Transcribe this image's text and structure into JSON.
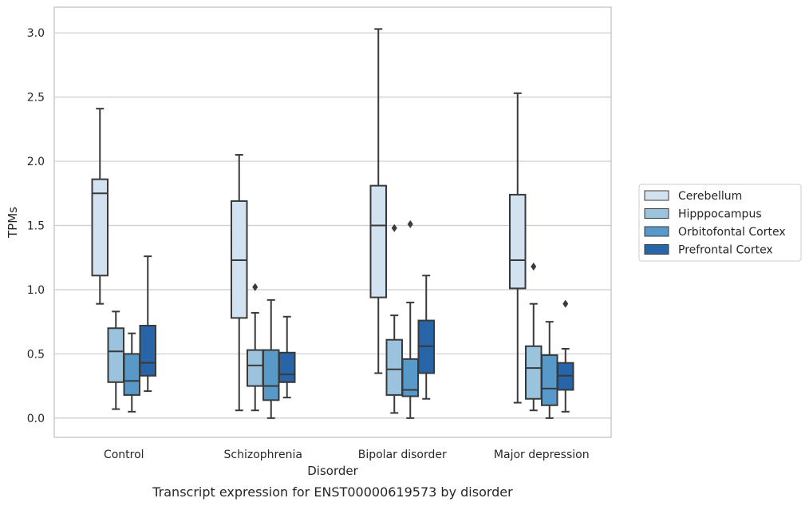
{
  "chart_data": {
    "type": "box",
    "caption": "Transcript expression for ENST00000619573 by disorder",
    "xlabel": "Disorder",
    "ylabel": "TPMs",
    "ylim": [
      -0.15,
      3.2
    ],
    "yticks": [
      0.0,
      0.5,
      1.0,
      1.5,
      2.0,
      2.5,
      3.0
    ],
    "ytick_labels": [
      "0.0",
      "0.5",
      "1.0",
      "1.5",
      "2.0",
      "2.5",
      "3.0"
    ],
    "grid": true,
    "legend_position": "right",
    "categories": [
      "Control",
      "Schizophrenia",
      "Bipolar disorder",
      "Major depression"
    ],
    "series": [
      {
        "name": "Cerebellum",
        "color": "#d3e2f1",
        "boxes": [
          {
            "whislo": 0.89,
            "q1": 1.11,
            "med": 1.75,
            "q3": 1.86,
            "whishi": 2.41,
            "fliers": []
          },
          {
            "whislo": 0.06,
            "q1": 0.78,
            "med": 1.23,
            "q3": 1.69,
            "whishi": 2.05,
            "fliers": []
          },
          {
            "whislo": 0.35,
            "q1": 0.94,
            "med": 1.5,
            "q3": 1.81,
            "whishi": 3.03,
            "fliers": []
          },
          {
            "whislo": 0.12,
            "q1": 1.01,
            "med": 1.23,
            "q3": 1.74,
            "whishi": 2.53,
            "fliers": []
          }
        ]
      },
      {
        "name": "Hipppocampus",
        "color": "#9cc3dd",
        "boxes": [
          {
            "whislo": 0.07,
            "q1": 0.28,
            "med": 0.52,
            "q3": 0.7,
            "whishi": 0.83,
            "fliers": []
          },
          {
            "whislo": 0.06,
            "q1": 0.25,
            "med": 0.41,
            "q3": 0.53,
            "whishi": 0.82,
            "fliers": [
              1.02
            ]
          },
          {
            "whislo": 0.04,
            "q1": 0.18,
            "med": 0.38,
            "q3": 0.61,
            "whishi": 0.8,
            "fliers": [
              1.48
            ]
          },
          {
            "whislo": 0.06,
            "q1": 0.15,
            "med": 0.39,
            "q3": 0.56,
            "whishi": 0.89,
            "fliers": [
              1.18
            ]
          }
        ]
      },
      {
        "name": "Orbitofontal Cortex",
        "color": "#5799c8",
        "boxes": [
          {
            "whislo": 0.05,
            "q1": 0.18,
            "med": 0.29,
            "q3": 0.5,
            "whishi": 0.66,
            "fliers": []
          },
          {
            "whislo": 0.0,
            "q1": 0.14,
            "med": 0.25,
            "q3": 0.53,
            "whishi": 0.92,
            "fliers": []
          },
          {
            "whislo": 0.0,
            "q1": 0.17,
            "med": 0.22,
            "q3": 0.46,
            "whishi": 0.9,
            "fliers": [
              1.51
            ]
          },
          {
            "whislo": 0.0,
            "q1": 0.1,
            "med": 0.23,
            "q3": 0.49,
            "whishi": 0.75,
            "fliers": []
          }
        ]
      },
      {
        "name": "Prefrontal Cortex",
        "color": "#2765a8",
        "boxes": [
          {
            "whislo": 0.21,
            "q1": 0.33,
            "med": 0.43,
            "q3": 0.72,
            "whishi": 1.26,
            "fliers": []
          },
          {
            "whislo": 0.16,
            "q1": 0.28,
            "med": 0.34,
            "q3": 0.51,
            "whishi": 0.79,
            "fliers": []
          },
          {
            "whislo": 0.15,
            "q1": 0.35,
            "med": 0.56,
            "q3": 0.76,
            "whishi": 1.11,
            "fliers": []
          },
          {
            "whislo": 0.05,
            "q1": 0.22,
            "med": 0.33,
            "q3": 0.43,
            "whishi": 0.54,
            "fliers": [
              0.89
            ]
          }
        ]
      }
    ]
  }
}
